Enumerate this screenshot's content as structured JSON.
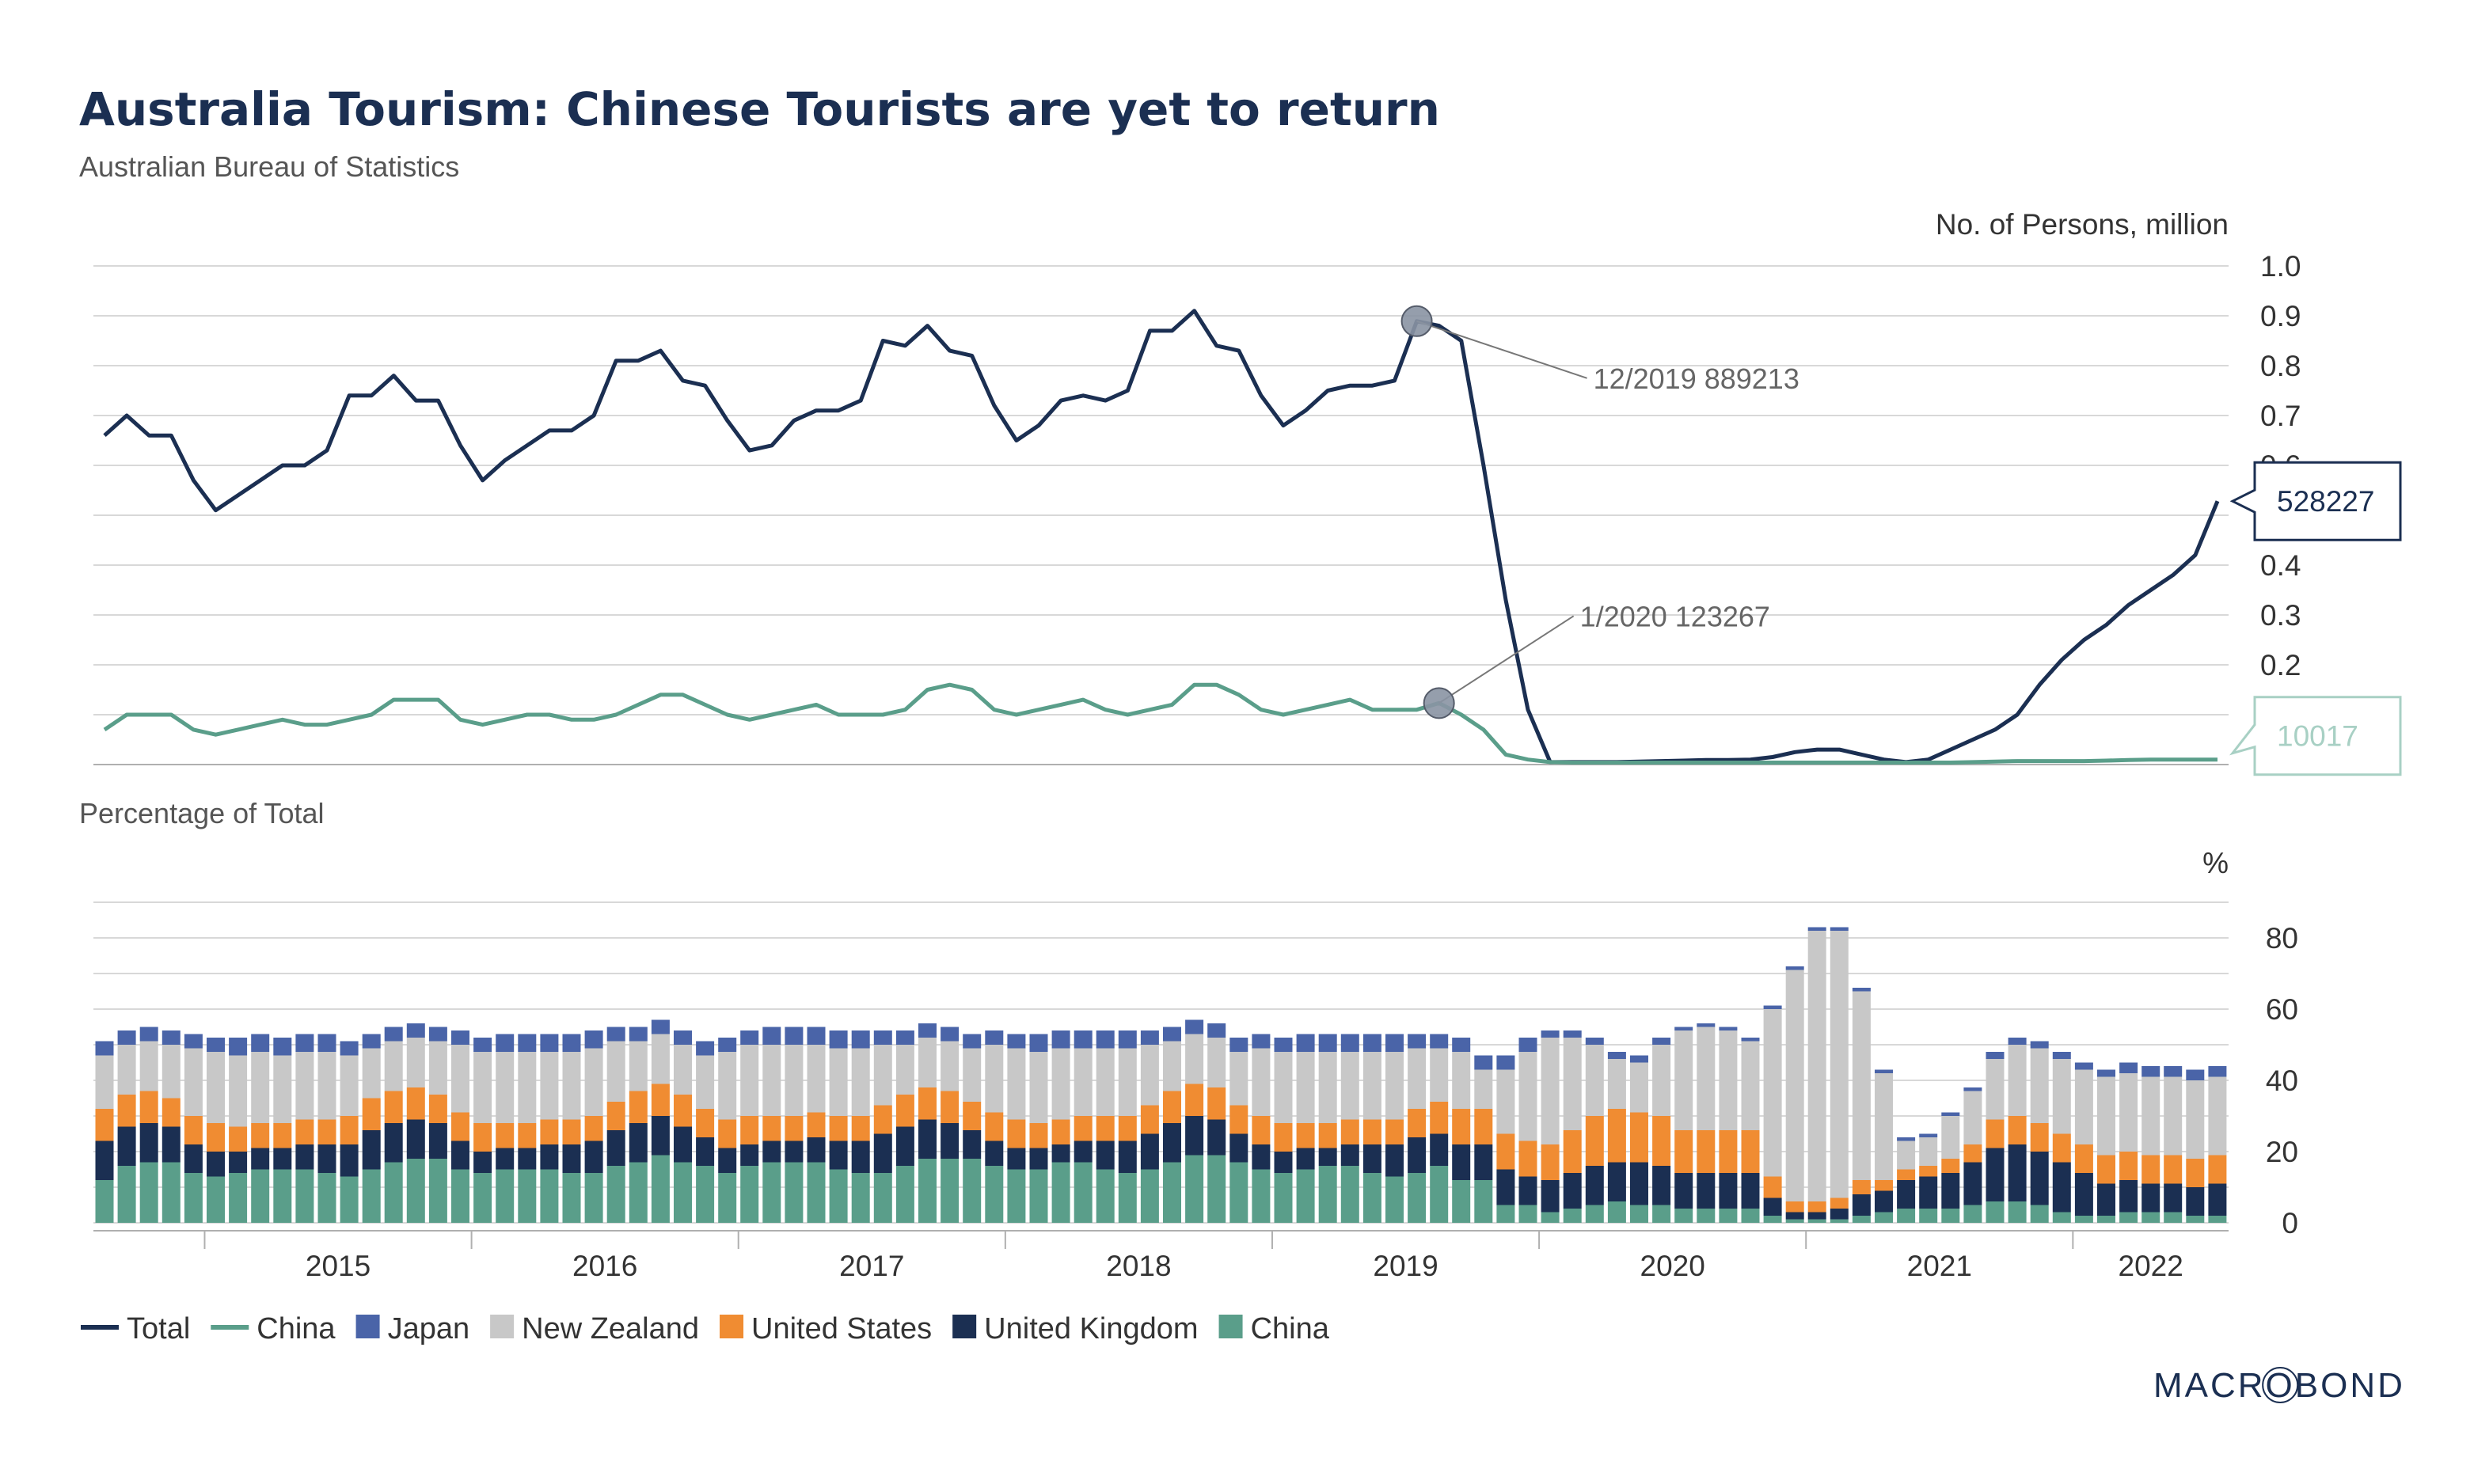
{
  "title": "Australia Tourism: Chinese Tourists are yet to return",
  "subtitle": "Australian Bureau of Statistics",
  "brand": "MACROBOND",
  "colors": {
    "total": "#1b2f52",
    "china": "#5a9e8a",
    "japan": "#4a64a8",
    "new_zealand": "#c8c8c8",
    "united_states": "#f08c32",
    "united_kingdom": "#1b2f52",
    "grid": "#d8d8d8"
  },
  "legend": [
    {
      "label": "Total",
      "kind": "line",
      "color_key": "total"
    },
    {
      "label": "China",
      "kind": "line",
      "color_key": "china"
    },
    {
      "label": "Japan",
      "kind": "box",
      "color_key": "japan"
    },
    {
      "label": "New Zealand",
      "kind": "box",
      "color_key": "new_zealand"
    },
    {
      "label": "United States",
      "kind": "box",
      "color_key": "united_states"
    },
    {
      "label": "United Kingdom",
      "kind": "box",
      "color_key": "united_kingdom"
    },
    {
      "label": "China",
      "kind": "box",
      "color_key": "china"
    }
  ],
  "chart_data": [
    {
      "type": "line",
      "title": "",
      "ylabel": "No. of Persons, million",
      "ylim": [
        0,
        1.0
      ],
      "yticks": [
        "0.0",
        "0.1",
        "0.2",
        "0.3",
        "0.4",
        "0.5",
        "0.6",
        "0.7",
        "0.8",
        "0.9",
        "1.0"
      ],
      "x_start": "2014-08",
      "x_labels": [
        "2015",
        "2016",
        "2017",
        "2018",
        "2019",
        "2020",
        "2021",
        "2022"
      ],
      "series": [
        {
          "name": "Total",
          "values": [
            0.66,
            0.7,
            0.66,
            0.66,
            0.57,
            0.51,
            0.54,
            0.57,
            0.6,
            0.6,
            0.63,
            0.74,
            0.74,
            0.78,
            0.73,
            0.73,
            0.64,
            0.57,
            0.61,
            0.64,
            0.67,
            0.67,
            0.7,
            0.81,
            0.81,
            0.83,
            0.77,
            0.76,
            0.69,
            0.63,
            0.64,
            0.69,
            0.71,
            0.71,
            0.73,
            0.85,
            0.84,
            0.88,
            0.83,
            0.82,
            0.72,
            0.65,
            0.68,
            0.73,
            0.74,
            0.73,
            0.75,
            0.87,
            0.87,
            0.91,
            0.84,
            0.83,
            0.74,
            0.68,
            0.71,
            0.75,
            0.76,
            0.76,
            0.77,
            0.889213,
            0.88,
            0.85,
            0.6,
            0.33,
            0.11,
            0.005,
            0.005,
            0.005,
            0.005,
            0.006,
            0.007,
            0.008,
            0.009,
            0.009,
            0.01,
            0.015,
            0.025,
            0.03,
            0.03,
            0.02,
            0.01,
            0.005,
            0.01,
            0.03,
            0.05,
            0.07,
            0.1,
            0.16,
            0.21,
            0.25,
            0.28,
            0.32,
            0.35,
            0.38,
            0.42,
            0.528227
          ]
        },
        {
          "name": "China",
          "values": [
            0.07,
            0.1,
            0.1,
            0.1,
            0.07,
            0.06,
            0.07,
            0.08,
            0.09,
            0.08,
            0.08,
            0.09,
            0.1,
            0.13,
            0.13,
            0.13,
            0.09,
            0.08,
            0.09,
            0.1,
            0.1,
            0.09,
            0.09,
            0.1,
            0.12,
            0.14,
            0.14,
            0.12,
            0.1,
            0.09,
            0.1,
            0.11,
            0.12,
            0.1,
            0.1,
            0.1,
            0.11,
            0.15,
            0.16,
            0.15,
            0.11,
            0.1,
            0.11,
            0.12,
            0.13,
            0.11,
            0.1,
            0.11,
            0.12,
            0.16,
            0.16,
            0.14,
            0.11,
            0.1,
            0.11,
            0.12,
            0.13,
            0.11,
            0.11,
            0.11,
            0.123267,
            0.1,
            0.07,
            0.02,
            0.01,
            0.005,
            0.004,
            0.004,
            0.004,
            0.004,
            0.004,
            0.004,
            0.004,
            0.004,
            0.004,
            0.004,
            0.004,
            0.004,
            0.004,
            0.004,
            0.004,
            0.004,
            0.004,
            0.004,
            0.005,
            0.006,
            0.007,
            0.007,
            0.007,
            0.007,
            0.008,
            0.009,
            0.01,
            0.01,
            0.01,
            0.010017
          ]
        }
      ],
      "annotations": [
        {
          "label": "12/2019 889213",
          "series": "Total",
          "x_index": 59,
          "value": 0.889213
        },
        {
          "label": "1/2020 123267",
          "series": "China",
          "x_index": 60,
          "value": 0.123267
        }
      ],
      "end_labels": [
        {
          "label": "528227",
          "series": "Total",
          "value": 0.528227
        },
        {
          "label": "10017",
          "series": "China",
          "value": 0.010017
        }
      ]
    },
    {
      "type": "stacked-bar",
      "title": "Percentage of Total",
      "ylabel": "%",
      "ylim": [
        0,
        90
      ],
      "yticks": [
        "0",
        "20",
        "40",
        "60",
        "80"
      ],
      "x_start": "2014-08",
      "x_labels": [
        "2015",
        "2016",
        "2017",
        "2018",
        "2019",
        "2020",
        "2021",
        "2022"
      ],
      "series_order": [
        "China",
        "United Kingdom",
        "United States",
        "New Zealand",
        "Japan"
      ],
      "series": [
        {
          "name": "China",
          "values": [
            12,
            16,
            17,
            17,
            14,
            13,
            14,
            15,
            15,
            15,
            14,
            13,
            15,
            17,
            18,
            18,
            15,
            14,
            15,
            15,
            15,
            14,
            14,
            16,
            17,
            19,
            17,
            16,
            14,
            16,
            17,
            17,
            17,
            15,
            14,
            14,
            16,
            18,
            18,
            18,
            16,
            15,
            15,
            17,
            17,
            15,
            14,
            15,
            17,
            19,
            19,
            17,
            15,
            14,
            15,
            16,
            16,
            14,
            13,
            14,
            16,
            12,
            12,
            5,
            5,
            3,
            4,
            5,
            6,
            5,
            5,
            4,
            4,
            4,
            4,
            2,
            1,
            1,
            1,
            2,
            3,
            4,
            4,
            4,
            5,
            6,
            6,
            5,
            3,
            2,
            2,
            3,
            3,
            3,
            2,
            2
          ]
        },
        {
          "name": "United Kingdom",
          "values": [
            11,
            11,
            11,
            10,
            8,
            7,
            6,
            6,
            6,
            7,
            8,
            9,
            11,
            11,
            11,
            10,
            8,
            6,
            6,
            6,
            7,
            8,
            9,
            10,
            11,
            11,
            10,
            8,
            7,
            6,
            6,
            6,
            7,
            8,
            9,
            11,
            11,
            11,
            10,
            8,
            7,
            6,
            6,
            5,
            6,
            8,
            9,
            10,
            11,
            11,
            10,
            8,
            7,
            6,
            6,
            5,
            6,
            8,
            9,
            10,
            9,
            10,
            10,
            10,
            8,
            9,
            10,
            11,
            11,
            12,
            11,
            10,
            10,
            10,
            10,
            5,
            2,
            2,
            3,
            6,
            6,
            8,
            9,
            10,
            12,
            15,
            16,
            15,
            14,
            12,
            9,
            9,
            8,
            8,
            8,
            9,
            10,
            12
          ]
        },
        {
          "name": "United States",
          "values": [
            9,
            9,
            9,
            8,
            8,
            8,
            7,
            7,
            7,
            7,
            7,
            8,
            9,
            9,
            9,
            8,
            8,
            8,
            7,
            7,
            7,
            7,
            7,
            8,
            9,
            9,
            9,
            8,
            8,
            8,
            7,
            7,
            7,
            7,
            7,
            8,
            9,
            9,
            9,
            8,
            8,
            8,
            7,
            7,
            7,
            7,
            7,
            8,
            9,
            9,
            9,
            8,
            8,
            8,
            7,
            7,
            7,
            7,
            7,
            8,
            9,
            10,
            10,
            10,
            10,
            10,
            12,
            14,
            15,
            14,
            14,
            12,
            12,
            12,
            12,
            6,
            3,
            3,
            3,
            4,
            3,
            3,
            3,
            4,
            5,
            8,
            8,
            8,
            8,
            8,
            8,
            8,
            8,
            8,
            8,
            8,
            9,
            10
          ]
        },
        {
          "name": "New Zealand",
          "values": [
            15,
            14,
            14,
            15,
            19,
            20,
            20,
            20,
            19,
            19,
            19,
            17,
            14,
            14,
            14,
            15,
            19,
            20,
            20,
            20,
            19,
            19,
            19,
            17,
            14,
            14,
            14,
            15,
            19,
            20,
            20,
            20,
            19,
            19,
            19,
            17,
            14,
            14,
            14,
            15,
            19,
            20,
            20,
            20,
            19,
            19,
            19,
            17,
            14,
            14,
            14,
            15,
            19,
            20,
            20,
            20,
            19,
            19,
            19,
            17,
            15,
            16,
            11,
            18,
            25,
            30,
            26,
            20,
            14,
            14,
            20,
            28,
            29,
            28,
            25,
            47,
            65,
            76,
            75,
            53,
            30,
            8,
            8,
            12,
            15,
            17,
            20,
            21,
            21,
            21,
            22,
            22,
            22,
            22,
            22,
            22,
            19,
            21,
            18
          ]
        },
        {
          "name": "Japan",
          "values": [
            4,
            4,
            4,
            4,
            4,
            4,
            5,
            5,
            5,
            5,
            5,
            4,
            4,
            4,
            4,
            4,
            4,
            4,
            5,
            5,
            5,
            5,
            5,
            4,
            4,
            4,
            4,
            4,
            4,
            4,
            5,
            5,
            5,
            5,
            5,
            4,
            4,
            4,
            4,
            4,
            4,
            4,
            5,
            5,
            5,
            5,
            5,
            4,
            4,
            4,
            4,
            4,
            4,
            4,
            5,
            5,
            5,
            5,
            5,
            4,
            4,
            4,
            4,
            4,
            4,
            2,
            2,
            2,
            2,
            2,
            2,
            1,
            1,
            1,
            1,
            1,
            1,
            1,
            1,
            1,
            1,
            1,
            1,
            1,
            1,
            2,
            2,
            2,
            2,
            2,
            2,
            3,
            3,
            3,
            3,
            3,
            3,
            3
          ]
        }
      ]
    }
  ]
}
